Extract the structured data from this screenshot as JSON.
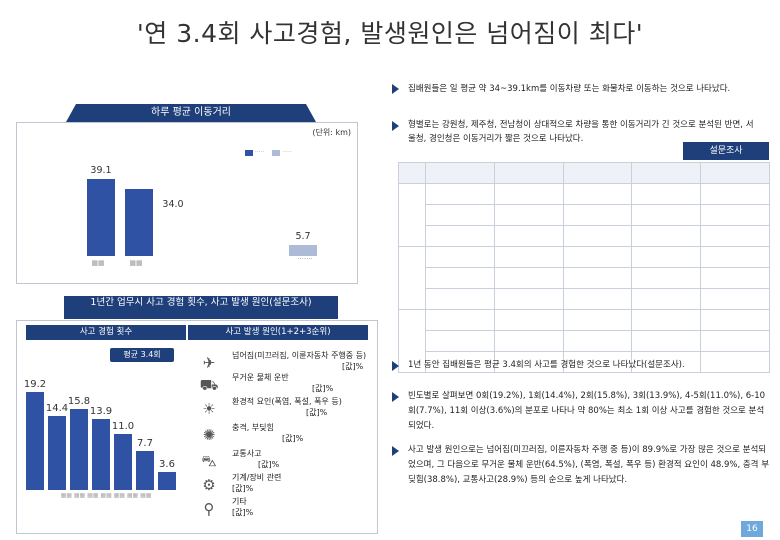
{
  "title": "'연 3.4회 사고경험, 발생원인은 넘어짐이 최다'",
  "right_top_bullets": [
    "집배원들은 일 평균 약 34~39.1km를 이동차량 또는 화물차로 이동하는 것으로 나타났다.",
    "형별로는 강원청, 제주청, 전남청이 상대적으로 차량을 통한 이동거리가 긴 것으로 분석된 반면, 서울청, 경인청은 이동거리가 짧은 것으로 나타났다."
  ],
  "survey_badge": "설문조사",
  "distance_panel": {
    "title": "하루 평균 이동거리",
    "unit": "(단위: km)",
    "bars": [
      {
        "value": "39.1",
        "level": 39.1,
        "tone": "dark"
      },
      {
        "value": "34.0",
        "level": 34.0,
        "tone": "dark"
      },
      {
        "value": "5.7",
        "level": 5.7,
        "tone": "light"
      }
    ]
  },
  "accident_header": "1년간 업무시 사고 경험 횟수, 사고 발생 원인(설문조사)",
  "count_panel": {
    "title": "사고 경험 횟수",
    "avg_label": "평균 3.4회",
    "bars": [
      {
        "value": "19.2",
        "level": 19.2
      },
      {
        "value": "14.4",
        "level": 14.4
      },
      {
        "value": "15.8",
        "level": 15.8
      },
      {
        "value": "13.9",
        "level": 13.9
      },
      {
        "value": "11.0",
        "level": 11.0
      },
      {
        "value": "7.7",
        "level": 7.7
      },
      {
        "value": "3.6",
        "level": 3.6
      }
    ]
  },
  "cause_panel": {
    "title": "사고 발생 원인(1+2+3순위)",
    "items": [
      {
        "label": "넘어짐(미끄러짐, 이륜자동차 주행중 등)",
        "pct": "[값]%",
        "icon": "fall-icon",
        "glyph": "✈"
      },
      {
        "label": "무거운 물체 운반",
        "pct": "[값]%",
        "icon": "truck-icon",
        "glyph": "⛟"
      },
      {
        "label": "환경적 요인(폭염, 폭설, 폭우 등)",
        "pct": "[값]%",
        "icon": "weather-icon",
        "glyph": "☀"
      },
      {
        "label": "충격, 부딪힘",
        "pct": "[값]%",
        "icon": "impact-icon",
        "glyph": "✺"
      },
      {
        "label": "교통사고",
        "pct": "[값]%",
        "icon": "car-icon",
        "glyph": "⛍"
      },
      {
        "label": "기계/장비 관련",
        "pct": "[값]%",
        "icon": "machine-icon",
        "glyph": "⚙"
      },
      {
        "label": "기타",
        "pct": "[값]%",
        "icon": "search-icon",
        "glyph": "⚲"
      }
    ]
  },
  "right_bottom_bullets": [
    "1년 동안 집배원들은 평균 3.4회의 사고를 경험한 것으로 나타났다(설문조사).",
    "빈도별로 살펴보면 0회(19.2%), 1회(14.4%), 2회(15.8%), 3회(13.9%), 4-5회(11.0%), 6-10회(7.7%), 11회 이상(3.6%)의 분포로 나타나 약 80%는 최소 1회 이상 사고를 경험한 것으로 분석 되었다.",
    "사고 발생 원인으로는 넘어짐(미끄러짐, 이륜자동차 주행 중 등)이 89.9%로 가장 많은 것으로 분석되었으며, 그 다음으로 무거운 물체 운반(64.5%), (폭염, 폭설, 폭우 등) 환경적 요인이 48.9%, 충격 부딪힘(38.8%), 교통사고(28.9%) 등의 순으로 높게 나타났다."
  ],
  "page_number": "16",
  "colors": {
    "navy": "#1f3f7a",
    "bar": "#2f52a5",
    "bar_light": "#aebbd6",
    "accent": "#6fa8dc"
  }
}
